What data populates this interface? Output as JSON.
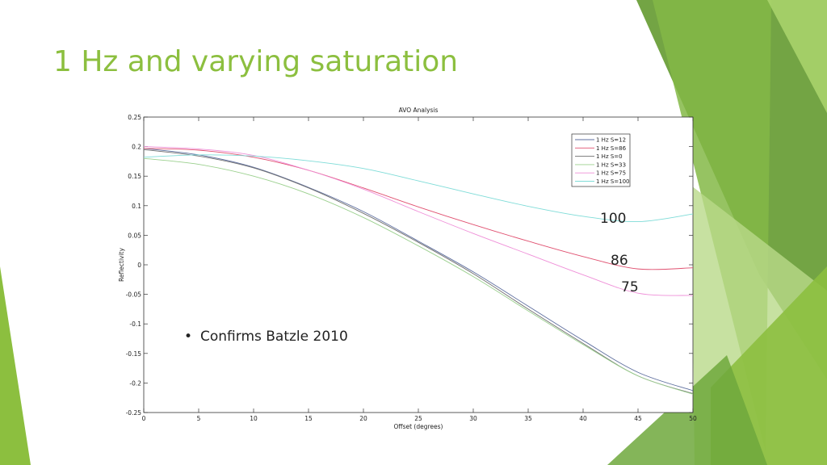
{
  "slide": {
    "title": "1 Hz and varying saturation",
    "bullet": "Confirms Batzle 2010",
    "annotations": [
      "100",
      "86",
      "75"
    ],
    "accent_colors": [
      "#8cbf3f",
      "#6b9f3a",
      "#b9d98a"
    ]
  },
  "chart_data": {
    "type": "line",
    "title": "AVO Analysis",
    "xlabel": "Offset (degrees)",
    "ylabel": "Reflectivity",
    "xlim": [
      0,
      50
    ],
    "ylim": [
      -0.25,
      0.25
    ],
    "xticks": [
      0,
      5,
      10,
      15,
      20,
      25,
      30,
      35,
      40,
      45,
      50
    ],
    "yticks": [
      0.25,
      0.2,
      0.15,
      0.1,
      0.05,
      0,
      -0.05,
      -0.1,
      -0.15,
      -0.2,
      -0.25
    ],
    "legend_position": "top-right",
    "grid": false,
    "x": [
      0,
      5,
      10,
      15,
      20,
      25,
      30,
      35,
      40,
      45,
      50
    ],
    "series": [
      {
        "name": "1 Hz S=12",
        "color": "#5f6f9f",
        "values": [
          0.197,
          0.186,
          0.165,
          0.131,
          0.09,
          0.04,
          -0.012,
          -0.07,
          -0.128,
          -0.182,
          -0.213
        ]
      },
      {
        "name": "1 Hz S=86",
        "color": "#e05070",
        "values": [
          0.197,
          0.194,
          0.182,
          0.16,
          0.13,
          0.098,
          0.068,
          0.04,
          0.014,
          -0.007,
          -0.005
        ]
      },
      {
        "name": "1 Hz S=0",
        "color": "#707070",
        "values": [
          0.195,
          0.184,
          0.164,
          0.13,
          0.087,
          0.038,
          -0.015,
          -0.075,
          -0.133,
          -0.188,
          -0.218
        ]
      },
      {
        "name": "1 Hz S=33",
        "color": "#9bd08e",
        "values": [
          0.18,
          0.17,
          0.15,
          0.12,
          0.08,
          0.032,
          -0.02,
          -0.078,
          -0.135,
          -0.188,
          -0.219
        ]
      },
      {
        "name": "1 Hz S=75",
        "color": "#ef8fd8",
        "values": [
          0.2,
          0.196,
          0.185,
          0.16,
          0.128,
          0.09,
          0.053,
          0.018,
          -0.017,
          -0.048,
          -0.052
        ]
      },
      {
        "name": "1 Hz S=100",
        "color": "#7fdcd8",
        "values": [
          0.182,
          0.186,
          0.184,
          0.176,
          0.163,
          0.142,
          0.12,
          0.099,
          0.082,
          0.073,
          0.086
        ]
      }
    ]
  }
}
